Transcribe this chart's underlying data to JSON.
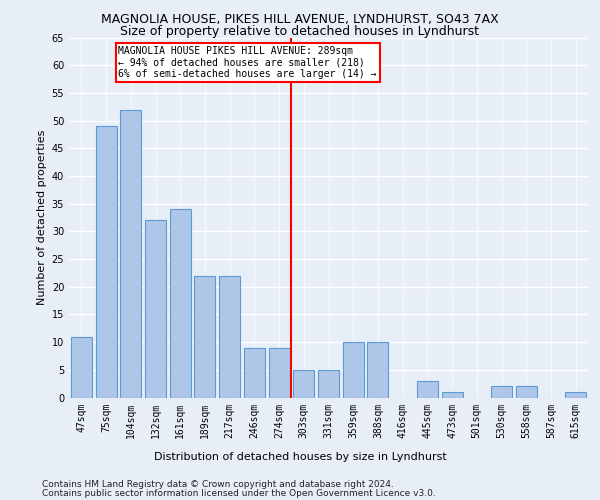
{
  "title1": "MAGNOLIA HOUSE, PIKES HILL AVENUE, LYNDHURST, SO43 7AX",
  "title2": "Size of property relative to detached houses in Lyndhurst",
  "xlabel": "Distribution of detached houses by size in Lyndhurst",
  "ylabel": "Number of detached properties",
  "footer1": "Contains HM Land Registry data © Crown copyright and database right 2024.",
  "footer2": "Contains public sector information licensed under the Open Government Licence v3.0.",
  "categories": [
    "47sqm",
    "75sqm",
    "104sqm",
    "132sqm",
    "161sqm",
    "189sqm",
    "217sqm",
    "246sqm",
    "274sqm",
    "303sqm",
    "331sqm",
    "359sqm",
    "388sqm",
    "416sqm",
    "445sqm",
    "473sqm",
    "501sqm",
    "530sqm",
    "558sqm",
    "587sqm",
    "615sqm"
  ],
  "values": [
    11,
    49,
    52,
    32,
    34,
    22,
    22,
    9,
    9,
    5,
    5,
    10,
    10,
    0,
    3,
    1,
    0,
    2,
    2,
    0,
    1
  ],
  "bar_color": "#aec6e8",
  "bar_edge_color": "#5b9bd5",
  "vline_x": 8.5,
  "vline_color": "red",
  "annotation_box_text": "MAGNOLIA HOUSE PIKES HILL AVENUE: 289sqm\n← 94% of detached houses are smaller (218)\n6% of semi-detached houses are larger (14) →",
  "ylim": [
    0,
    65
  ],
  "yticks": [
    0,
    5,
    10,
    15,
    20,
    25,
    30,
    35,
    40,
    45,
    50,
    55,
    60,
    65
  ],
  "bg_color": "#e8eef8",
  "grid_color": "#ffffff",
  "title1_fontsize": 9,
  "title2_fontsize": 9,
  "axis_label_fontsize": 8,
  "tick_fontsize": 7,
  "footer_fontsize": 6.5
}
